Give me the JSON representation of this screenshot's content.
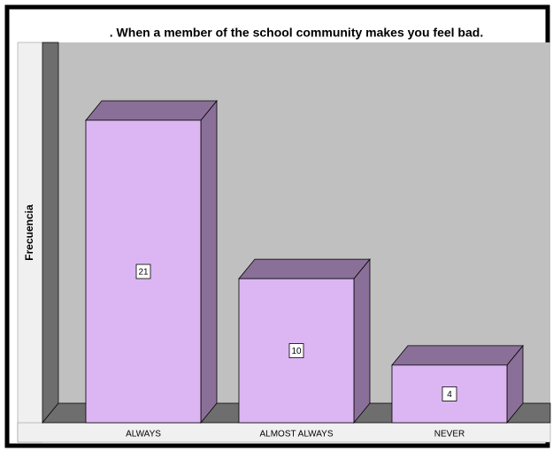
{
  "chart_data": {
    "type": "bar3d",
    "title": ". When a member of the school community makes you feel bad.",
    "y_label": "Frecuencia",
    "categories": [
      "ALWAYS",
      "ALMOST ALWAYS",
      "NEVER"
    ],
    "values": [
      21,
      10,
      4
    ],
    "color": "#dcb6f2"
  }
}
